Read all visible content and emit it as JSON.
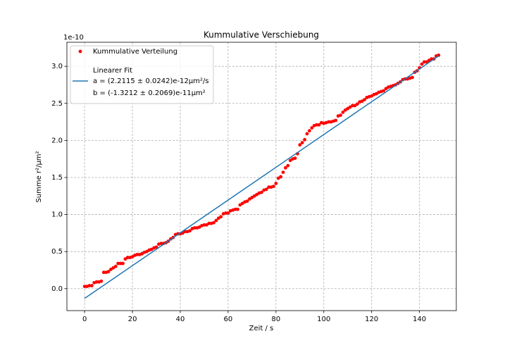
{
  "chart_data": {
    "type": "scatter",
    "title": "Kummulative Verschiebung",
    "x_label": "Zeit / s",
    "y_label": "Summe r²/μm²",
    "y_offset_text": "1e-10",
    "xlim": [
      -7.4,
      155.4
    ],
    "ylim": [
      -0.297,
      3.325
    ],
    "xticks": [
      0,
      20,
      40,
      60,
      80,
      100,
      120,
      140
    ],
    "yticks": [
      {
        "value": 0,
        "label": "0.0"
      },
      {
        "value": 0.5,
        "label": "0.5"
      },
      {
        "value": 1,
        "label": "1.0"
      },
      {
        "value": 1.5,
        "label": "1.5"
      },
      {
        "value": 2,
        "label": "2.0"
      },
      {
        "value": 2.5,
        "label": "2.5"
      },
      {
        "value": 3,
        "label": "3.0"
      }
    ],
    "grid": true,
    "legend": "upper left",
    "series": [
      {
        "name": "Kummulative Verteilung",
        "type": "scatter",
        "color": "#ff0000",
        "x": [
          0,
          1,
          2,
          3,
          4,
          5,
          6,
          7,
          8,
          9,
          10,
          11,
          12,
          13,
          14,
          15,
          16,
          17,
          18,
          19,
          20,
          21,
          22,
          23,
          24,
          25,
          26,
          27,
          28,
          29,
          30,
          31,
          32,
          33,
          34,
          35,
          36,
          37,
          38,
          39,
          40,
          41,
          42,
          43,
          44,
          45,
          46,
          47,
          48,
          49,
          50,
          51,
          52,
          53,
          54,
          55,
          56,
          57,
          58,
          59,
          60,
          61,
          62,
          63,
          64,
          65,
          66,
          67,
          68,
          69,
          70,
          71,
          72,
          73,
          74,
          75,
          76,
          77,
          78,
          79,
          80,
          81,
          82,
          83,
          84,
          85,
          86,
          87,
          88,
          89,
          90,
          91,
          92,
          93,
          94,
          95,
          96,
          97,
          98,
          99,
          100,
          101,
          102,
          103,
          104,
          105,
          106,
          107,
          108,
          109,
          110,
          111,
          112,
          113,
          114,
          115,
          116,
          117,
          118,
          119,
          120,
          121,
          122,
          123,
          124,
          125,
          126,
          127,
          128,
          129,
          130,
          131,
          132,
          133,
          134,
          135,
          136,
          137,
          138,
          139,
          140,
          141,
          142,
          143,
          144,
          145,
          146,
          147,
          148
        ],
        "values": [
          0.03,
          0.03,
          0.04,
          0.04,
          0.08,
          0.09,
          0.09,
          0.1,
          0.22,
          0.22,
          0.23,
          0.26,
          0.28,
          0.3,
          0.34,
          0.34,
          0.34,
          0.4,
          0.42,
          0.42,
          0.43,
          0.45,
          0.46,
          0.46,
          0.47,
          0.49,
          0.5,
          0.52,
          0.53,
          0.55,
          0.56,
          0.6,
          0.61,
          0.61,
          0.62,
          0.64,
          0.67,
          0.69,
          0.73,
          0.74,
          0.74,
          0.75,
          0.77,
          0.77,
          0.78,
          0.81,
          0.82,
          0.82,
          0.83,
          0.85,
          0.86,
          0.86,
          0.88,
          0.88,
          0.89,
          0.92,
          0.95,
          0.97,
          1.01,
          1.02,
          1.02,
          1.05,
          1.06,
          1.07,
          1.07,
          1.13,
          1.15,
          1.17,
          1.18,
          1.21,
          1.23,
          1.25,
          1.27,
          1.29,
          1.3,
          1.33,
          1.34,
          1.37,
          1.37,
          1.38,
          1.42,
          1.49,
          1.51,
          1.57,
          1.63,
          1.66,
          1.73,
          1.75,
          1.76,
          1.82,
          1.94,
          1.97,
          2.01,
          2.09,
          2.13,
          2.17,
          2.2,
          2.21,
          2.21,
          2.24,
          2.23,
          2.24,
          2.25,
          2.25,
          2.26,
          2.27,
          2.33,
          2.34,
          2.38,
          2.41,
          2.43,
          2.45,
          2.47,
          2.47,
          2.49,
          2.52,
          2.53,
          2.55,
          2.58,
          2.59,
          2.6,
          2.62,
          2.63,
          2.65,
          2.66,
          2.67,
          2.7,
          2.72,
          2.73,
          2.74,
          2.75,
          2.77,
          2.79,
          2.82,
          2.83,
          2.83,
          2.84,
          2.85,
          2.92,
          2.94,
          2.98,
          3.03,
          3.06,
          3.06,
          3.08,
          3.1,
          3.1,
          3.14,
          3.15
        ]
      },
      {
        "name": "Linearer Fit",
        "type": "line",
        "color": "#1f77b4",
        "fit_params": [
          "a = (2.2115 ± 0.0242)e-12μm²/s",
          "b = (-1.3212 ± 0.2069)e-11μm²"
        ],
        "x": [
          0,
          148
        ],
        "values": [
          -0.132,
          3.141
        ]
      }
    ]
  }
}
